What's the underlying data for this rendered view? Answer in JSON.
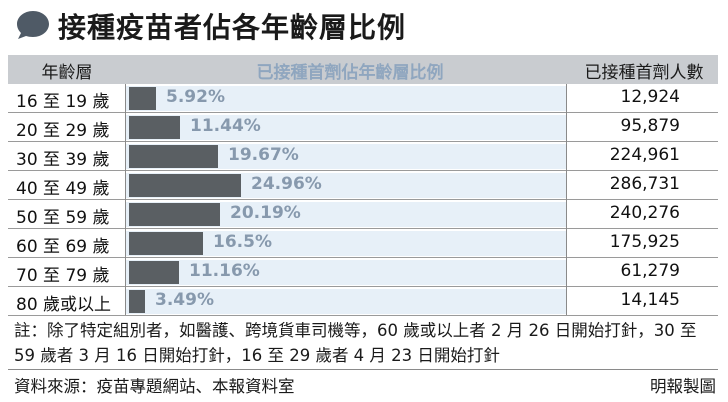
{
  "title": "接種疫苗者佔各年齡層比例",
  "header": {
    "age": "年齡層",
    "pct": "已接種首劑佔年齡層比例",
    "count": "已接種首劑人數"
  },
  "chart_data": {
    "type": "bar",
    "categories": [
      "16至19歲",
      "20至29歲",
      "30至39歲",
      "40至49歲",
      "50至59歲",
      "60至69歲",
      "70至79歲",
      "80歲或以上"
    ],
    "values": [
      5.92,
      11.44,
      19.67,
      24.96,
      20.19,
      16.5,
      11.16,
      3.49
    ],
    "value_labels": [
      "5.92%",
      "11.44%",
      "19.67%",
      "24.96%",
      "20.19%",
      "16.5%",
      "11.16%",
      "3.49%"
    ],
    "counts": [
      "12,924",
      "95,879",
      "224,961",
      "286,731",
      "240,276",
      "175,925",
      "61,279",
      "14,145"
    ],
    "rows_display": [
      "16 至 19 歲",
      "20 至 29 歲",
      "30 至 39 歲",
      "40 至 49 歲",
      "50 至 59 歲",
      "60 至 69 歲",
      "70 至 79 歲",
      "80 歲或以上"
    ],
    "colors": {
      "bar": "#5a5f63",
      "band": "#e7f0f8",
      "label": "#8799ad",
      "header": "#c9ccd0"
    }
  },
  "note": "註：除了特定組別者，如醫護、跨境貨車司機等，60 歲或以上者 2 月 26 日開始打針，30 至 59 歲者 3 月 16 日開始打針，16 至 29 歲者 4 月 23 日開始打針",
  "source": "資料來源：疫苗專題網站、本報資料室",
  "credit": "明報製圖"
}
